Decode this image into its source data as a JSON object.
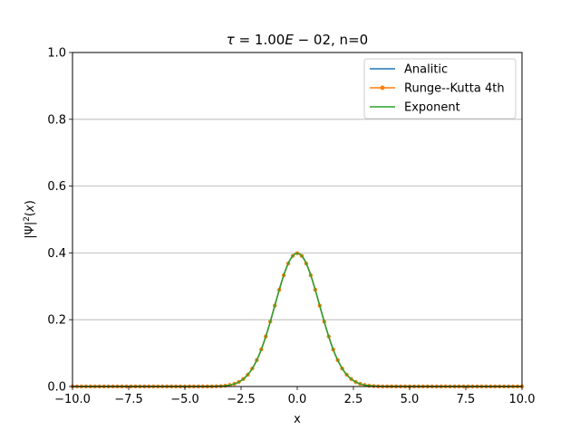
{
  "chart_data": {
    "type": "line",
    "title": "τ = 1.00E − 02, n=0",
    "title_parts": {
      "tau": "τ",
      "eq": " = 1.00",
      "E": "E",
      "rest": " − 02, n=0"
    },
    "xlabel": "x",
    "ylabel_parts": {
      "pre": "|Ψ|",
      "sup": "2",
      "post": "(",
      "var": "x",
      "close": ")"
    },
    "xlim": [
      -10,
      10
    ],
    "ylim": [
      0,
      1.0
    ],
    "x_ticks": [
      -10,
      -7.5,
      -5,
      -2.5,
      0,
      2.5,
      5,
      7.5,
      10
    ],
    "x_tick_labels": [
      "−10.0",
      "−7.5",
      "−5.0",
      "−2.5",
      "0.0",
      "2.5",
      "5.0",
      "7.5",
      "10.0"
    ],
    "y_ticks": [
      0,
      0.2,
      0.4,
      0.6,
      0.8,
      1.0
    ],
    "y_tick_labels": [
      "0.0",
      "0.2",
      "0.4",
      "0.6",
      "0.8",
      "1.0"
    ],
    "grid": "horizontal",
    "legend_position": "top-right",
    "curve": {
      "form": "gaussian",
      "peak_x": 0,
      "peak_y": 0.399,
      "sigma": 1.0
    },
    "x_range": {
      "start": -10,
      "end": 10,
      "line_step": 0.05,
      "marker_step": 0.2
    },
    "series": [
      {
        "name": "Analitic",
        "color": "#1f77b4",
        "marker": "none"
      },
      {
        "name": "Runge--Kutta 4th",
        "color": "#ff7f0e",
        "marker": "circle"
      },
      {
        "name": "Exponent",
        "color": "#2ca02c",
        "marker": "none"
      }
    ]
  }
}
